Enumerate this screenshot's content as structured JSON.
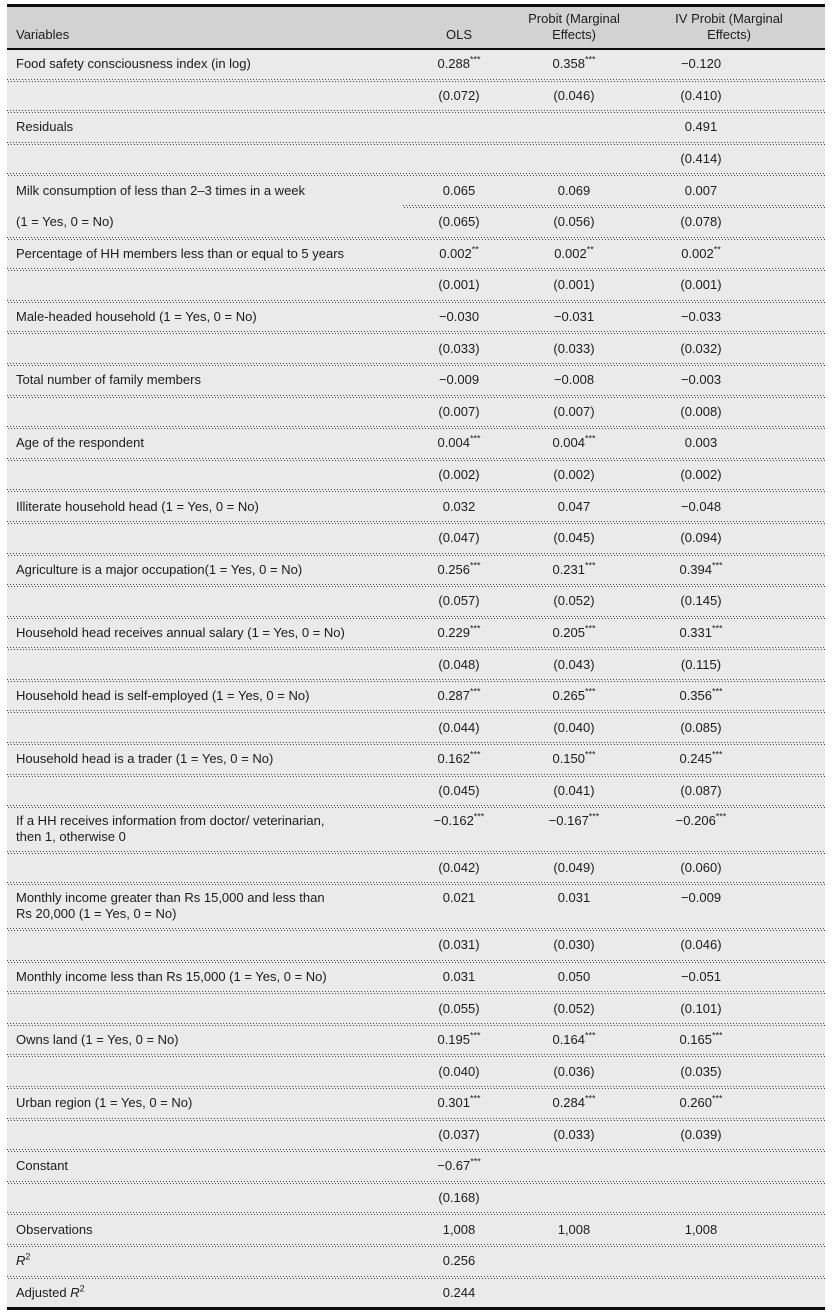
{
  "table": {
    "colors": {
      "body_bg": "#eaeaea",
      "header_bg": "#d2d2d2",
      "rule": "#0d0d0d",
      "dotted": "#4a4a4a",
      "text": "#1c1c1c"
    },
    "columns": [
      "Variables",
      "OLS",
      "Probit (Marginal\nEffects)",
      "IV Probit (Marginal\nEffects)"
    ],
    "rows": [
      {
        "variable": "Food safety consciousness index (in log)",
        "ols": "0.288***",
        "probit": "0.358***",
        "iv_probit": "−0.120",
        "sep_after": "full"
      },
      {
        "variable": "",
        "ols": "(0.072)",
        "probit": "(0.046)",
        "iv_probit": "(0.410)",
        "sep_after": "full"
      },
      {
        "variable": "Residuals",
        "ols": "",
        "probit": "",
        "iv_probit": "0.491",
        "sep_after": "full"
      },
      {
        "variable": "",
        "ols": "",
        "probit": "",
        "iv_probit": "(0.414)",
        "sep_after": "full"
      },
      {
        "variable": "Milk consumption of less than 2–3 times in a week",
        "ols": "0.065",
        "probit": "0.069",
        "iv_probit": "0.007",
        "sep_after": "cols"
      },
      {
        "variable": "(1 = Yes, 0 = No)",
        "ols": "(0.065)",
        "probit": "(0.056)",
        "iv_probit": "(0.078)",
        "sep_after": "full"
      },
      {
        "variable": "Percentage of HH members less than or equal to 5 years",
        "ols": "0.002**",
        "probit": "0.002**",
        "iv_probit": "0.002**",
        "sep_after": "full"
      },
      {
        "variable": "",
        "ols": "(0.001)",
        "probit": "(0.001)",
        "iv_probit": "(0.001)",
        "sep_after": "full"
      },
      {
        "variable": "Male-headed household (1 = Yes, 0 = No)",
        "ols": "−0.030",
        "probit": "−0.031",
        "iv_probit": "−0.033",
        "sep_after": "full"
      },
      {
        "variable": "",
        "ols": "(0.033)",
        "probit": "(0.033)",
        "iv_probit": "(0.032)",
        "sep_after": "full"
      },
      {
        "variable": "Total number of family members",
        "ols": "−0.009",
        "probit": "−0.008",
        "iv_probit": "−0.003",
        "sep_after": "full"
      },
      {
        "variable": "",
        "ols": "(0.007)",
        "probit": "(0.007)",
        "iv_probit": "(0.008)",
        "sep_after": "full"
      },
      {
        "variable": "Age of the respondent",
        "ols": "0.004***",
        "probit": "0.004***",
        "iv_probit": "0.003",
        "sep_after": "full"
      },
      {
        "variable": "",
        "ols": "(0.002)",
        "probit": "(0.002)",
        "iv_probit": "(0.002)",
        "sep_after": "full"
      },
      {
        "variable": "Illiterate household head (1 = Yes, 0 = No)",
        "ols": "0.032",
        "probit": "0.047",
        "iv_probit": "−0.048",
        "sep_after": "full"
      },
      {
        "variable": "",
        "ols": "(0.047)",
        "probit": "(0.045)",
        "iv_probit": "(0.094)",
        "sep_after": "full"
      },
      {
        "variable": "Agriculture is a major occupation(1 = Yes, 0 = No)",
        "ols": "0.256***",
        "probit": "0.231***",
        "iv_probit": "0.394***",
        "sep_after": "full"
      },
      {
        "variable": "",
        "ols": "(0.057)",
        "probit": "(0.052)",
        "iv_probit": "(0.145)",
        "sep_after": "full"
      },
      {
        "variable": "Household head receives annual salary (1 = Yes, 0 = No)",
        "ols": "0.229***",
        "probit": "0.205***",
        "iv_probit": "0.331***",
        "sep_after": "full"
      },
      {
        "variable": "",
        "ols": "(0.048)",
        "probit": "(0.043)",
        "iv_probit": "(0.115)",
        "sep_after": "full"
      },
      {
        "variable": "Household head is self-employed (1 = Yes, 0 = No)",
        "ols": "0.287***",
        "probit": "0.265***",
        "iv_probit": "0.356***",
        "sep_after": "full"
      },
      {
        "variable": "",
        "ols": "(0.044)",
        "probit": "(0.040)",
        "iv_probit": "(0.085)",
        "sep_after": "full"
      },
      {
        "variable": "Household head is a trader (1 = Yes, 0 = No)",
        "ols": "0.162***",
        "probit": "0.150***",
        "iv_probit": "0.245***",
        "sep_after": "full"
      },
      {
        "variable": "",
        "ols": "(0.045)",
        "probit": "(0.041)",
        "iv_probit": "(0.087)",
        "sep_after": "full"
      },
      {
        "variable": "If a HH receives information from doctor/ veterinarian,\nthen 1, otherwise 0",
        "tall": true,
        "ols": "−0.162***",
        "probit": "−0.167***",
        "iv_probit": "−0.206***",
        "sep_after": "full"
      },
      {
        "variable": "",
        "ols": "(0.042)",
        "probit": "(0.049)",
        "iv_probit": "(0.060)",
        "sep_after": "full"
      },
      {
        "variable": "Monthly income greater than Rs 15,000 and less than\nRs 20,000 (1 = Yes, 0 = No)",
        "tall": true,
        "ols": "0.021",
        "probit": "0.031",
        "iv_probit": "−0.009",
        "sep_after": "full"
      },
      {
        "variable": "",
        "ols": "(0.031)",
        "probit": "(0.030)",
        "iv_probit": "(0.046)",
        "sep_after": "full"
      },
      {
        "variable": "Monthly income less than Rs 15,000 (1 = Yes, 0 = No)",
        "ols": "0.031",
        "probit": "0.050",
        "iv_probit": "−0.051",
        "sep_after": "full"
      },
      {
        "variable": "",
        "ols": "(0.055)",
        "probit": "(0.052)",
        "iv_probit": "(0.101)",
        "sep_after": "full"
      },
      {
        "variable": "Owns land (1 = Yes, 0 = No)",
        "ols": "0.195***",
        "probit": "0.164***",
        "iv_probit": "0.165***",
        "sep_after": "full"
      },
      {
        "variable": "",
        "ols": "(0.040)",
        "probit": "(0.036)",
        "iv_probit": "(0.035)",
        "sep_after": "full"
      },
      {
        "variable": "Urban region (1 = Yes, 0 = No)",
        "ols": "0.301***",
        "probit": "0.284***",
        "iv_probit": "0.260***",
        "sep_after": "full"
      },
      {
        "variable": "",
        "ols": "(0.037)",
        "probit": "(0.033)",
        "iv_probit": "(0.039)",
        "sep_after": "full"
      },
      {
        "variable": "Constant",
        "ols": "−0.67***",
        "probit": "",
        "iv_probit": "",
        "sep_after": "full"
      },
      {
        "variable": "",
        "ols": "(0.168)",
        "probit": "",
        "iv_probit": "",
        "sep_after": "full"
      },
      {
        "variable": "Observations",
        "ols": "1,008",
        "probit": "1,008",
        "iv_probit": "1,008",
        "sep_after": "full"
      },
      {
        "variable": "R²",
        "ols": "0.256",
        "probit": "",
        "iv_probit": "",
        "sep_after": "full"
      },
      {
        "variable": "Adjusted R²",
        "ols": "0.244",
        "probit": "",
        "iv_probit": "",
        "sep_after": "none"
      }
    ]
  }
}
